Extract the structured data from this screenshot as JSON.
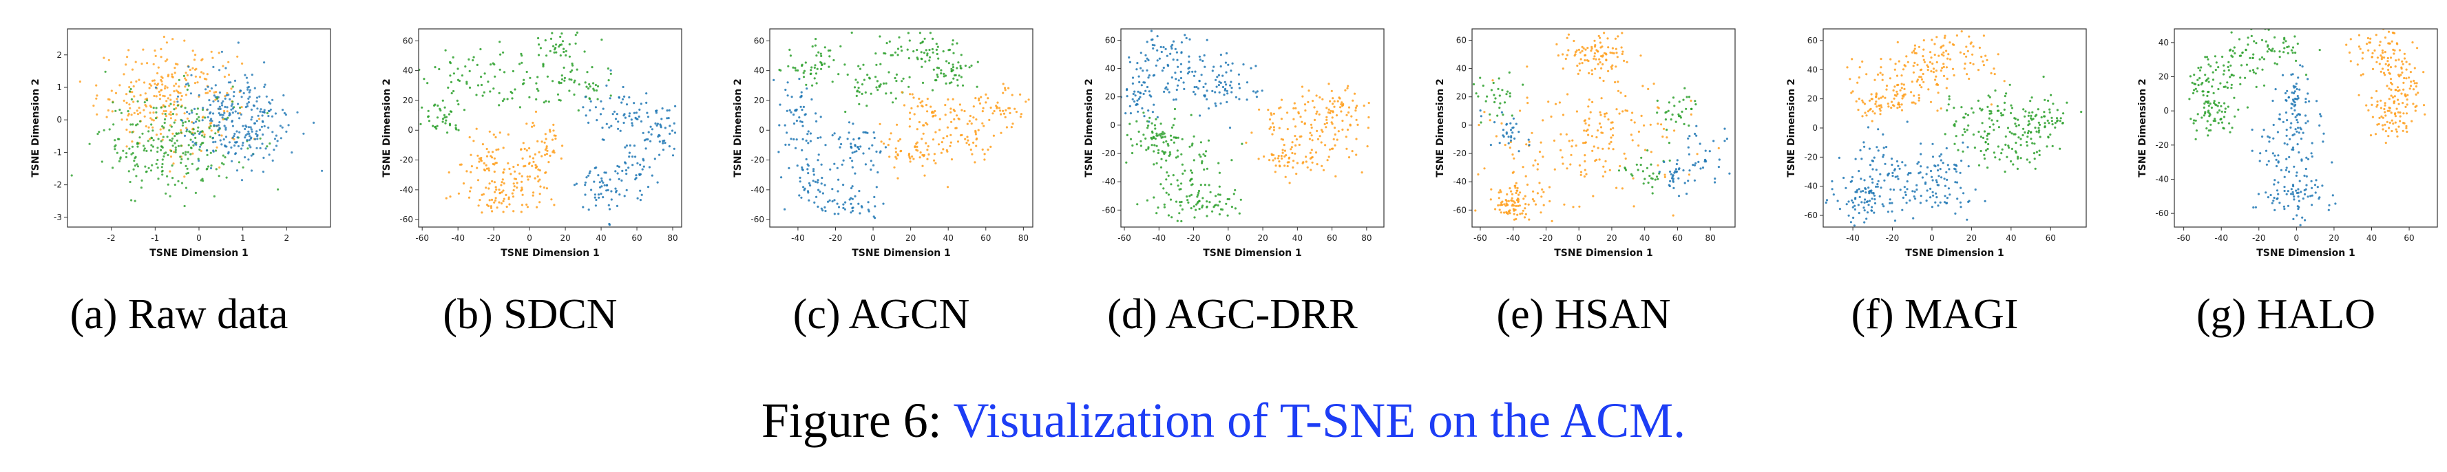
{
  "figure": {
    "label": "Figure 6:",
    "title": "Visualization of T-SNE on the ACM.",
    "colors": {
      "class_a": "#1f77b4",
      "class_b": "#ff9f1c",
      "class_c": "#2ca02c",
      "title_link": "#1d3df5"
    }
  },
  "panels": [
    {
      "caption": "(a) Raw data",
      "xlabel": "TSNE Dimension 1",
      "ylabel": "TSNE Dimension 2",
      "xlim": [
        -3,
        3
      ],
      "ylim": [
        -3.3,
        2.8
      ],
      "xticks": [
        "-2",
        "-1",
        "0",
        "1",
        "2"
      ],
      "xtick_values": [
        -2,
        -1,
        0,
        1,
        2
      ],
      "yticks": [
        "-3",
        "-2",
        "-1",
        "0",
        "1",
        "2"
      ],
      "ytick_values": [
        -3,
        -2,
        -1,
        0,
        1,
        2
      ]
    },
    {
      "caption": "(b) SDCN",
      "xlabel": "TSNE Dimension 1",
      "ylabel": "TSNE Dimension 2",
      "xlim": [
        -62,
        85
      ],
      "ylim": [
        -65,
        68
      ],
      "xticks": [
        "-60",
        "-40",
        "-20",
        "0",
        "20",
        "40",
        "60",
        "80"
      ],
      "xtick_values": [
        -60,
        -40,
        -20,
        0,
        20,
        40,
        60,
        80
      ],
      "yticks": [
        "-60",
        "-40",
        "-20",
        "0",
        "20",
        "40",
        "60"
      ],
      "ytick_values": [
        -60,
        -40,
        -20,
        0,
        20,
        40,
        60
      ]
    },
    {
      "caption": "(c) AGCN",
      "xlabel": "TSNE Dimension 1",
      "ylabel": "TSNE Dimension 2",
      "xlim": [
        -55,
        85
      ],
      "ylim": [
        -65,
        68
      ],
      "xticks": [
        "-40",
        "-20",
        "0",
        "20",
        "40",
        "60",
        "80"
      ],
      "xtick_values": [
        -40,
        -20,
        0,
        20,
        40,
        60,
        80
      ],
      "yticks": [
        "-60",
        "-40",
        "-20",
        "0",
        "20",
        "40",
        "60"
      ],
      "ytick_values": [
        -60,
        -40,
        -20,
        0,
        20,
        40,
        60
      ]
    },
    {
      "caption": "(d) AGC-DRR",
      "xlabel": "TSNE Dimension 1",
      "ylabel": "TSNE Dimension 2",
      "xlim": [
        -62,
        90
      ],
      "ylim": [
        -72,
        68
      ],
      "xticks": [
        "-60",
        "-40",
        "-20",
        "0",
        "20",
        "40",
        "60",
        "80"
      ],
      "xtick_values": [
        -60,
        -40,
        -20,
        0,
        20,
        40,
        60,
        80
      ],
      "yticks": [
        "-60",
        "-40",
        "-20",
        "0",
        "20",
        "40",
        "60"
      ],
      "ytick_values": [
        -60,
        -40,
        -20,
        0,
        20,
        40,
        60
      ]
    },
    {
      "caption": "(e) HSAN",
      "xlabel": "TSNE Dimension 1",
      "ylabel": "TSNE Dimension 2",
      "xlim": [
        -65,
        95
      ],
      "ylim": [
        -72,
        68
      ],
      "xticks": [
        "-60",
        "-40",
        "-20",
        "0",
        "20",
        "40",
        "60",
        "80"
      ],
      "xtick_values": [
        -60,
        -40,
        -20,
        0,
        20,
        40,
        60,
        80
      ],
      "yticks": [
        "-60",
        "-40",
        "-20",
        "0",
        "20",
        "40",
        "60"
      ],
      "ytick_values": [
        -60,
        -40,
        -20,
        0,
        20,
        40,
        60
      ]
    },
    {
      "caption": "(f) MAGI",
      "xlabel": "TSNE Dimension 1",
      "ylabel": "TSNE Dimension 2",
      "xlim": [
        -55,
        78
      ],
      "ylim": [
        -68,
        68
      ],
      "xticks": [
        "-40",
        "-20",
        "0",
        "20",
        "40",
        "60"
      ],
      "xtick_values": [
        -40,
        -20,
        0,
        20,
        40,
        60
      ],
      "yticks": [
        "-60",
        "-40",
        "-20",
        "0",
        "20",
        "40",
        "60"
      ],
      "ytick_values": [
        -60,
        -40,
        -20,
        0,
        20,
        40,
        60
      ]
    },
    {
      "caption": "(g) HALO",
      "xlabel": "TSNE Dimension 1",
      "ylabel": "TSNE Dimension 2",
      "xlim": [
        -65,
        75
      ],
      "ylim": [
        -68,
        48
      ],
      "xticks": [
        "-60",
        "-40",
        "-20",
        "0",
        "20",
        "40",
        "60"
      ],
      "xtick_values": [
        -60,
        -40,
        -20,
        0,
        20,
        40,
        60
      ],
      "yticks": [
        "-60",
        "-40",
        "-20",
        "0",
        "20",
        "40"
      ],
      "ytick_values": [
        -60,
        -40,
        -20,
        0,
        20,
        40
      ]
    }
  ],
  "chart_data": [
    {
      "type": "scatter",
      "xlabel": "TSNE Dimension 1",
      "ylabel": "TSNE Dimension 2",
      "xlim": [
        -3,
        3
      ],
      "ylim": [
        -3.3,
        2.8
      ],
      "series": [
        {
          "color": "#ff9f1c",
          "cx": -0.7,
          "cy": 0.7,
          "sx": 0.8,
          "sy": 0.8,
          "n": 260
        },
        {
          "color": "#2ca02c",
          "cx": -0.6,
          "cy": -0.7,
          "sx": 0.8,
          "sy": 0.8,
          "n": 260
        },
        {
          "color": "#1f77b4",
          "cx": 0.9,
          "cy": 0.0,
          "sx": 0.65,
          "sy": 0.75,
          "n": 260
        }
      ]
    },
    {
      "type": "scatter",
      "xlabel": "TSNE Dimension 1",
      "ylabel": "TSNE Dimension 2",
      "xlim": [
        -62,
        85
      ],
      "ylim": [
        -65,
        68
      ],
      "series": [
        {
          "color": "#2ca02c",
          "clusters": [
            [
              -35,
              40,
              12,
              9
            ],
            [
              -5,
              30,
              14,
              10
            ],
            [
              15,
              55,
              9,
              7
            ],
            [
              30,
              30,
              9,
              8
            ],
            [
              -50,
              10,
              6,
              6
            ]
          ],
          "n": 200
        },
        {
          "color": "#ff9f1c",
          "clusters": [
            [
              -25,
              -20,
              9,
              10
            ],
            [
              -20,
              -45,
              12,
              6
            ],
            [
              5,
              -10,
              8,
              9
            ],
            [
              -2,
              -35,
              8,
              8
            ]
          ],
          "n": 200
        },
        {
          "color": "#1f77b4",
          "clusters": [
            [
              50,
              15,
              10,
              8
            ],
            [
              70,
              0,
              8,
              10
            ],
            [
              55,
              -25,
              9,
              12
            ],
            [
              40,
              -40,
              7,
              8
            ]
          ],
          "n": 200
        }
      ]
    },
    {
      "type": "scatter",
      "xlabel": "TSNE Dimension 1",
      "ylabel": "TSNE Dimension 2",
      "xlim": [
        -55,
        85
      ],
      "ylim": [
        -65,
        68
      ],
      "series": [
        {
          "color": "#2ca02c",
          "clusters": [
            [
              -30,
              45,
              10,
              8
            ],
            [
              0,
              30,
              12,
              8
            ],
            [
              25,
              55,
              10,
              6
            ],
            [
              40,
              40,
              8,
              6
            ]
          ],
          "n": 200
        },
        {
          "color": "#ff9f1c",
          "clusters": [
            [
              30,
              10,
              10,
              8
            ],
            [
              50,
              -5,
              10,
              10
            ],
            [
              65,
              15,
              8,
              8
            ],
            [
              20,
              -15,
              8,
              7
            ]
          ],
          "n": 200
        },
        {
          "color": "#1f77b4",
          "clusters": [
            [
              -40,
              10,
              6,
              12
            ],
            [
              -35,
              -30,
              8,
              12
            ],
            [
              -15,
              -50,
              12,
              6
            ],
            [
              -10,
              -10,
              8,
              8
            ]
          ],
          "n": 200
        }
      ]
    },
    {
      "type": "scatter",
      "xlabel": "TSNE Dimension 1",
      "ylabel": "TSNE Dimension 2",
      "xlim": [
        -62,
        90
      ],
      "ylim": [
        -72,
        68
      ],
      "series": [
        {
          "color": "#1f77b4",
          "clusters": [
            [
              -40,
              50,
              14,
              8
            ],
            [
              -20,
              35,
              14,
              9
            ],
            [
              0,
              25,
              10,
              8
            ],
            [
              -50,
              20,
              6,
              8
            ]
          ],
          "n": 200
        },
        {
          "color": "#ff9f1c",
          "clusters": [
            [
              40,
              5,
              14,
              12
            ],
            [
              55,
              -10,
              12,
              12
            ],
            [
              35,
              -25,
              10,
              8
            ],
            [
              65,
              10,
              8,
              8
            ]
          ],
          "n": 200
        },
        {
          "color": "#2ca02c",
          "clusters": [
            [
              -25,
              -30,
              14,
              14
            ],
            [
              -20,
              -55,
              12,
              6
            ],
            [
              -40,
              -10,
              8,
              8
            ]
          ],
          "n": 200
        }
      ]
    },
    {
      "type": "scatter",
      "xlabel": "TSNE Dimension 1",
      "ylabel": "TSNE Dimension 2",
      "xlim": [
        -65,
        95
      ],
      "ylim": [
        -72,
        68
      ],
      "series": [
        {
          "color": "#ff9f1c",
          "clusters": [
            [
              -10,
              -10,
              28,
              25
            ],
            [
              20,
              -5,
              25,
              25
            ],
            [
              -40,
              -55,
              8,
              6
            ],
            [
              10,
              50,
              10,
              8
            ]
          ],
          "n": 360
        },
        {
          "color": "#2ca02c",
          "clusters": [
            [
              -50,
              20,
              8,
              10
            ],
            [
              40,
              -30,
              8,
              8
            ],
            [
              60,
              10,
              6,
              6
            ]
          ],
          "n": 90
        },
        {
          "color": "#1f77b4",
          "clusters": [
            [
              75,
              -20,
              8,
              10
            ],
            [
              60,
              -35,
              6,
              6
            ],
            [
              -45,
              -5,
              6,
              6
            ]
          ],
          "n": 90
        }
      ]
    },
    {
      "type": "scatter",
      "xlabel": "TSNE Dimension 1",
      "ylabel": "TSNE Dimension 2",
      "xlim": [
        -55,
        78
      ],
      "ylim": [
        -68,
        68
      ],
      "series": [
        {
          "color": "#ff9f1c",
          "clusters": [
            [
              -10,
              35,
              16,
              10
            ],
            [
              5,
              50,
              14,
              8
            ],
            [
              -25,
              20,
              8,
              6
            ]
          ],
          "n": 220
        },
        {
          "color": "#2ca02c",
          "clusters": [
            [
              25,
              10,
              12,
              10
            ],
            [
              40,
              -10,
              10,
              10
            ],
            [
              55,
              5,
              8,
              8
            ]
          ],
          "n": 200
        },
        {
          "color": "#1f77b4",
          "clusters": [
            [
              -20,
              -25,
              16,
              12
            ],
            [
              0,
              -40,
              14,
              12
            ],
            [
              -35,
              -50,
              8,
              8
            ]
          ],
          "n": 240
        }
      ]
    },
    {
      "type": "scatter",
      "xlabel": "TSNE Dimension 1",
      "ylabel": "TSNE Dimension 2",
      "xlim": [
        -65,
        75
      ],
      "ylim": [
        -68,
        48
      ],
      "series": [
        {
          "color": "#2ca02c",
          "clusters": [
            [
              -40,
              20,
              10,
              10
            ],
            [
              -20,
              35,
              10,
              5
            ],
            [
              -45,
              0,
              6,
              8
            ]
          ],
          "n": 200
        },
        {
          "color": "#1f77b4",
          "clusters": [
            [
              0,
              5,
              5,
              10
            ],
            [
              -5,
              -25,
              8,
              10
            ],
            [
              0,
              -50,
              10,
              6
            ]
          ],
          "n": 200
        },
        {
          "color": "#ff9f1c",
          "clusters": [
            [
              45,
              35,
              8,
              8
            ],
            [
              55,
              15,
              6,
              10
            ],
            [
              50,
              -5,
              6,
              8
            ]
          ],
          "n": 200
        }
      ]
    }
  ]
}
